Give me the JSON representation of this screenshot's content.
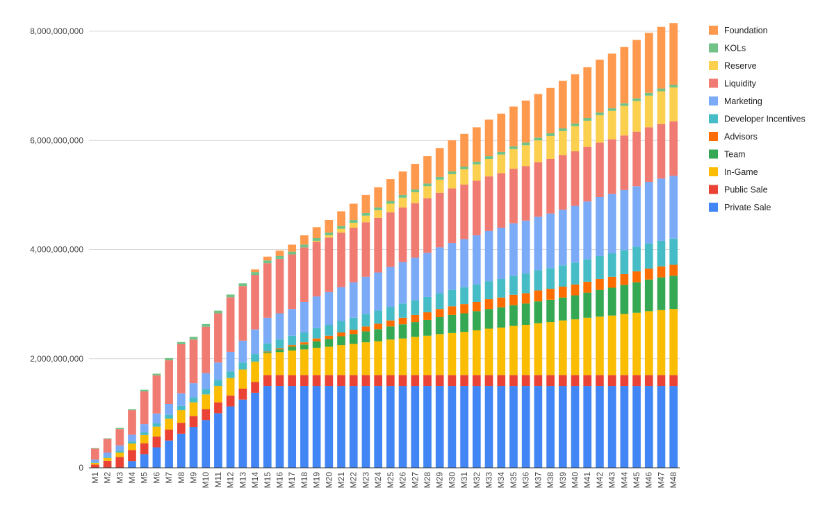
{
  "chart_data": {
    "type": "bar",
    "stacked": true,
    "categories": [
      "M1",
      "M2",
      "M3",
      "M4",
      "M5",
      "M6",
      "M7",
      "M8",
      "M9",
      "M10",
      "M11",
      "M12",
      "M13",
      "M14",
      "M15",
      "M16",
      "M17",
      "M18",
      "M19",
      "M20",
      "M21",
      "M22",
      "M23",
      "M24",
      "M25",
      "M26",
      "M27",
      "M28",
      "M29",
      "M30",
      "M31",
      "M32",
      "M33",
      "M34",
      "M35",
      "M36",
      "M37",
      "M38",
      "M39",
      "M40",
      "M41",
      "M42",
      "M43",
      "M44",
      "M45",
      "M46",
      "M47",
      "M48"
    ],
    "ylim": [
      0,
      8000000000
    ],
    "yticks": [
      0,
      2000000000,
      4000000000,
      6000000000,
      8000000000
    ],
    "ytick_labels": [
      "0",
      "2,000,000,000",
      "4,000,000,000",
      "6,000,000,000",
      "8,000,000,000"
    ],
    "grid": true,
    "legend_position": "right",
    "series": [
      {
        "name": "Private Sale",
        "color": "#4285f4",
        "values": [
          0,
          0,
          0,
          125000000,
          250000000,
          375000000,
          500000000,
          625000000,
          750000000,
          875000000,
          1000000000,
          1125000000,
          1250000000,
          1375000000,
          1500000000,
          1500000000,
          1500000000,
          1500000000,
          1500000000,
          1500000000,
          1500000000,
          1500000000,
          1500000000,
          1500000000,
          1500000000,
          1500000000,
          1500000000,
          1500000000,
          1500000000,
          1500000000,
          1500000000,
          1500000000,
          1500000000,
          1500000000,
          1500000000,
          1500000000,
          1500000000,
          1500000000,
          1500000000,
          1500000000,
          1500000000,
          1500000000,
          1500000000,
          1500000000,
          1500000000,
          1500000000,
          1500000000,
          1500000000
        ]
      },
      {
        "name": "Public Sale",
        "color": "#ea4335",
        "values": [
          60000000,
          130000000,
          200000000,
          200000000,
          200000000,
          200000000,
          200000000,
          200000000,
          200000000,
          200000000,
          200000000,
          200000000,
          200000000,
          200000000,
          200000000,
          200000000,
          200000000,
          200000000,
          200000000,
          200000000,
          200000000,
          200000000,
          200000000,
          200000000,
          200000000,
          200000000,
          200000000,
          200000000,
          200000000,
          200000000,
          200000000,
          200000000,
          200000000,
          200000000,
          200000000,
          200000000,
          200000000,
          200000000,
          200000000,
          200000000,
          200000000,
          200000000,
          200000000,
          200000000,
          200000000,
          200000000,
          200000000,
          200000000
        ]
      },
      {
        "name": "In-Game",
        "color": "#fbbc04",
        "values": [
          30000000,
          50000000,
          80000000,
          120000000,
          150000000,
          180000000,
          200000000,
          230000000,
          250000000,
          270000000,
          300000000,
          320000000,
          350000000,
          370000000,
          400000000,
          420000000,
          450000000,
          470000000,
          500000000,
          520000000,
          550000000,
          570000000,
          600000000,
          620000000,
          650000000,
          670000000,
          700000000,
          720000000,
          750000000,
          770000000,
          790000000,
          820000000,
          850000000,
          870000000,
          900000000,
          920000000,
          950000000,
          970000000,
          1000000000,
          1020000000,
          1050000000,
          1070000000,
          1090000000,
          1120000000,
          1140000000,
          1170000000,
          1190000000,
          1210000000
        ]
      },
      {
        "name": "Team",
        "color": "#34a853",
        "values": [
          0,
          0,
          0,
          0,
          0,
          0,
          0,
          0,
          0,
          0,
          0,
          0,
          0,
          0,
          20000000,
          50000000,
          70000000,
          90000000,
          120000000,
          140000000,
          160000000,
          180000000,
          200000000,
          220000000,
          240000000,
          260000000,
          270000000,
          290000000,
          310000000,
          330000000,
          340000000,
          350000000,
          360000000,
          370000000,
          380000000,
          390000000,
          400000000,
          410000000,
          420000000,
          440000000,
          460000000,
          490000000,
          510000000,
          530000000,
          560000000,
          580000000,
          600000000,
          610000000
        ]
      },
      {
        "name": "Advisors",
        "color": "#ff6d01",
        "values": [
          0,
          0,
          0,
          0,
          0,
          0,
          0,
          0,
          0,
          0,
          0,
          0,
          0,
          0,
          10000000,
          20000000,
          30000000,
          40000000,
          50000000,
          60000000,
          70000000,
          80000000,
          90000000,
          100000000,
          110000000,
          120000000,
          130000000,
          140000000,
          150000000,
          160000000,
          170000000,
          170000000,
          180000000,
          180000000,
          190000000,
          190000000,
          200000000,
          200000000,
          200000000,
          200000000,
          200000000,
          200000000,
          200000000,
          200000000,
          200000000,
          200000000,
          200000000,
          200000000
        ]
      },
      {
        "name": "Developer Incentives",
        "color": "#46bdc6",
        "values": [
          10000000,
          20000000,
          30000000,
          40000000,
          50000000,
          60000000,
          70000000,
          80000000,
          90000000,
          100000000,
          110000000,
          120000000,
          130000000,
          140000000,
          150000000,
          160000000,
          170000000,
          180000000,
          190000000,
          200000000,
          210000000,
          220000000,
          230000000,
          240000000,
          250000000,
          260000000,
          270000000,
          280000000,
          290000000,
          300000000,
          310000000,
          320000000,
          330000000,
          340000000,
          350000000,
          360000000,
          370000000,
          380000000,
          390000000,
          400000000,
          410000000,
          420000000,
          430000000,
          440000000,
          450000000,
          460000000,
          470000000,
          480000000
        ]
      },
      {
        "name": "Marketing",
        "color": "#7baaf7",
        "values": [
          50000000,
          80000000,
          100000000,
          120000000,
          150000000,
          180000000,
          200000000,
          230000000,
          260000000,
          290000000,
          320000000,
          360000000,
          400000000,
          450000000,
          470000000,
          480000000,
          490000000,
          560000000,
          580000000,
          600000000,
          620000000,
          650000000,
          680000000,
          700000000,
          730000000,
          760000000,
          780000000,
          810000000,
          840000000,
          860000000,
          880000000,
          900000000,
          920000000,
          940000000,
          960000000,
          970000000,
          980000000,
          1000000000,
          1020000000,
          1040000000,
          1060000000,
          1080000000,
          1090000000,
          1100000000,
          1110000000,
          1130000000,
          1140000000,
          1150000000
        ]
      },
      {
        "name": "Liquidity",
        "color": "#f07b72",
        "values": [
          200000000,
          250000000,
          300000000,
          450000000,
          600000000,
          700000000,
          800000000,
          900000000,
          800000000,
          850000000,
          900000000,
          1000000000,
          1000000000,
          1000000000,
          1000000000,
          1000000000,
          1000000000,
          1000000000,
          1000000000,
          1000000000,
          1000000000,
          1000000000,
          1000000000,
          1000000000,
          1000000000,
          1000000000,
          1000000000,
          1000000000,
          1000000000,
          1000000000,
          1000000000,
          1000000000,
          1000000000,
          1000000000,
          1000000000,
          1000000000,
          1000000000,
          1000000000,
          1000000000,
          1000000000,
          1000000000,
          1000000000,
          1000000000,
          1000000000,
          1000000000,
          1000000000,
          1000000000,
          1000000000
        ]
      },
      {
        "name": "Reserve",
        "color": "#fcd04f",
        "values": [
          0,
          0,
          0,
          0,
          0,
          0,
          0,
          0,
          0,
          0,
          0,
          0,
          0,
          0,
          0,
          0,
          0,
          0,
          20000000,
          40000000,
          70000000,
          90000000,
          120000000,
          140000000,
          160000000,
          180000000,
          200000000,
          220000000,
          240000000,
          260000000,
          280000000,
          300000000,
          320000000,
          340000000,
          360000000,
          380000000,
          400000000,
          420000000,
          440000000,
          460000000,
          480000000,
          500000000,
          520000000,
          540000000,
          560000000,
          580000000,
          600000000,
          620000000
        ]
      },
      {
        "name": "KOLs",
        "color": "#71c287",
        "values": [
          10000000,
          10000000,
          20000000,
          20000000,
          30000000,
          30000000,
          40000000,
          40000000,
          50000000,
          50000000,
          50000000,
          50000000,
          50000000,
          50000000,
          50000000,
          50000000,
          50000000,
          50000000,
          50000000,
          50000000,
          50000000,
          50000000,
          50000000,
          50000000,
          50000000,
          50000000,
          50000000,
          50000000,
          50000000,
          50000000,
          50000000,
          50000000,
          50000000,
          50000000,
          50000000,
          50000000,
          50000000,
          50000000,
          50000000,
          50000000,
          50000000,
          50000000,
          50000000,
          50000000,
          50000000,
          50000000,
          50000000,
          50000000
        ]
      },
      {
        "name": "Foundation",
        "color": "#ff994d",
        "values": [
          0,
          0,
          0,
          0,
          0,
          0,
          0,
          0,
          0,
          0,
          0,
          0,
          0,
          50000000,
          70000000,
          100000000,
          130000000,
          170000000,
          200000000,
          230000000,
          270000000,
          300000000,
          330000000,
          370000000,
          400000000,
          430000000,
          470000000,
          500000000,
          530000000,
          570000000,
          600000000,
          630000000,
          670000000,
          700000000,
          730000000,
          770000000,
          800000000,
          830000000,
          870000000,
          900000000,
          930000000,
          970000000,
          1000000000,
          1030000000,
          1070000000,
          1100000000,
          1130000000,
          1130000000
        ]
      }
    ]
  }
}
